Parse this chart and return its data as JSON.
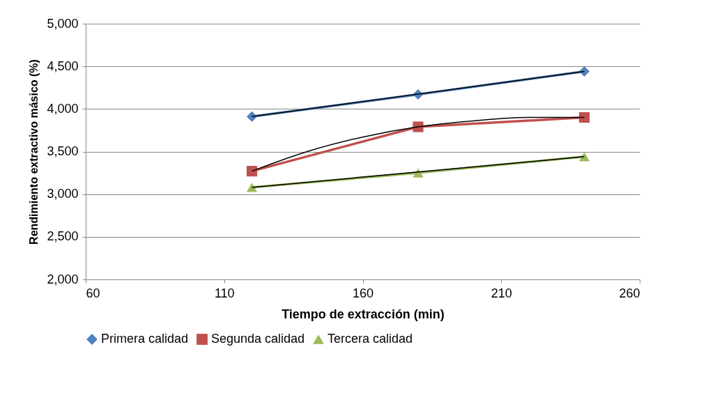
{
  "chart_data": {
    "type": "line",
    "xlabel": "Tiempo de extracción (min)",
    "ylabel": "Rendimiento extractivo másico (%)",
    "xlim": [
      60,
      260
    ],
    "xticks": [
      60,
      110,
      160,
      210,
      260
    ],
    "ylim": [
      2000,
      5000
    ],
    "yticks": [
      {
        "value": 2000,
        "label": "2,000"
      },
      {
        "value": 2500,
        "label": "2,500"
      },
      {
        "value": 3000,
        "label": "3,000"
      },
      {
        "value": 3500,
        "label": "3,500"
      },
      {
        "value": 4000,
        "label": "4,000"
      },
      {
        "value": 4500,
        "label": "4,500"
      },
      {
        "value": 5000,
        "label": "5,000"
      }
    ],
    "grid": "y",
    "legend": "bottom",
    "line_style": "solid",
    "series": [
      {
        "name": "Primera calidad",
        "color": "#4f81bd",
        "marker": "diamond",
        "x": [
          120,
          180,
          240
        ],
        "values": [
          3910,
          4170,
          4440
        ]
      },
      {
        "name": "Segunda calidad",
        "color": "#c0504d",
        "marker": "square",
        "x": [
          120,
          180,
          240
        ],
        "values": [
          3270,
          3790,
          3900
        ]
      },
      {
        "name": "Tercera calidad",
        "color": "#9bbb59",
        "marker": "triangle",
        "x": [
          120,
          180,
          240
        ],
        "values": [
          3080,
          3250,
          3440
        ]
      },
      {
        "color": "#000000",
        "marker": "none",
        "x": [
          120,
          240
        ],
        "values": [
          3910,
          4440
        ]
      },
      {
        "color": "#000000",
        "marker": "none",
        "x": [
          120,
          140,
          160,
          180,
          200,
          220,
          240
        ],
        "values": [
          3270,
          3500,
          3670,
          3790,
          3860,
          3900,
          3900
        ]
      },
      {
        "color": "#000000",
        "marker": "none",
        "x": [
          120,
          240
        ],
        "values": [
          3080,
          3440
        ]
      }
    ]
  }
}
